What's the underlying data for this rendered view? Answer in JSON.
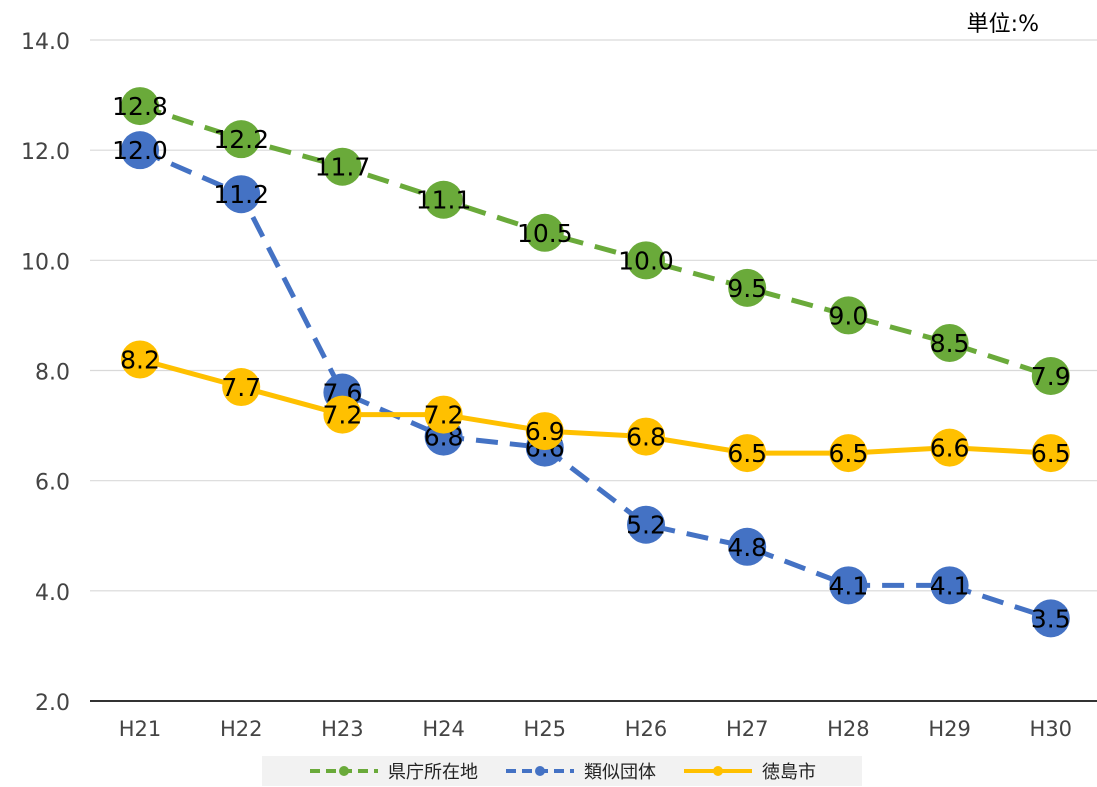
{
  "unit_label": "単位:%",
  "chart_data": {
    "type": "line",
    "categories": [
      "H21",
      "H22",
      "H23",
      "H24",
      "H25",
      "H26",
      "H27",
      "H28",
      "H29",
      "H30"
    ],
    "ylim": [
      2.0,
      14.0
    ],
    "yticks": [
      "2.0",
      "4.0",
      "6.0",
      "8.0",
      "10.0",
      "12.0",
      "14.0"
    ],
    "grid": true,
    "legend_position": "bottom",
    "series": [
      {
        "name": "県庁所在地",
        "color": "#6aaa3a",
        "dash": "dashed",
        "values": [
          12.8,
          12.2,
          11.7,
          11.1,
          10.5,
          10.0,
          9.5,
          9.0,
          8.5,
          7.9
        ],
        "labels": [
          "12.8",
          "12.2",
          "11.7",
          "11.1",
          "10.5",
          "10.0",
          "9.5",
          "9.0",
          "8.5",
          "7.9"
        ]
      },
      {
        "name": "類似団体",
        "color": "#4472c4",
        "dash": "dashed",
        "values": [
          12.0,
          11.2,
          7.6,
          6.8,
          6.6,
          5.2,
          4.8,
          4.1,
          4.1,
          3.5
        ],
        "labels": [
          "12.0",
          "11.2",
          "7.6",
          "6.8",
          "6.6",
          "5.2",
          "4.8",
          "4.1",
          "4.1",
          "3.5"
        ]
      },
      {
        "name": "徳島市",
        "color": "#ffc000",
        "dash": "solid",
        "values": [
          8.2,
          7.7,
          7.2,
          7.2,
          6.9,
          6.8,
          6.5,
          6.5,
          6.6,
          6.5
        ],
        "labels": [
          "8.2",
          "7.7",
          "7.2",
          "7.2",
          "6.9",
          "6.8",
          "6.5",
          "6.5",
          "6.6",
          "6.5"
        ]
      }
    ]
  }
}
